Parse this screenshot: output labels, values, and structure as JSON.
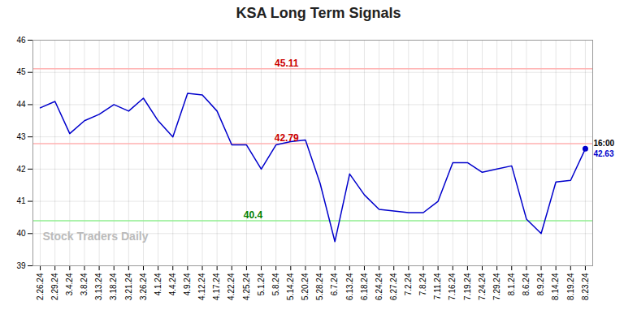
{
  "chart_data": {
    "type": "line",
    "title": "KSA Long Term Signals",
    "categories": [
      "2.26.24",
      "2.29.24",
      "3.4.24",
      "3.8.24",
      "3.13.24",
      "3.18.24",
      "3.21.24",
      "3.26.24",
      "4.1.24",
      "4.4.24",
      "4.9.24",
      "4.12.24",
      "4.17.24",
      "4.22.24",
      "4.25.24",
      "5.1.24",
      "5.8.24",
      "5.14.24",
      "5.20.24",
      "5.28.24",
      "6.7.24",
      "6.13.24",
      "6.18.24",
      "6.24.24",
      "6.27.24",
      "7.2.24",
      "7.8.24",
      "7.11.24",
      "7.16.24",
      "7.19.24",
      "7.24.24",
      "7.29.24",
      "8.1.24",
      "8.6.24",
      "8.9.24",
      "8.14.24",
      "8.19.24",
      "8.23.24"
    ],
    "values": [
      43.9,
      44.1,
      43.1,
      43.5,
      43.7,
      44.0,
      43.8,
      44.2,
      43.5,
      43.0,
      44.35,
      44.3,
      43.8,
      42.75,
      42.75,
      42.0,
      42.75,
      42.85,
      42.9,
      41.55,
      39.75,
      41.85,
      41.2,
      40.75,
      40.7,
      40.65,
      40.65,
      41.0,
      42.2,
      42.2,
      41.9,
      42.0,
      42.1,
      40.45,
      40.0,
      41.6,
      41.65,
      42.63
    ],
    "color": "#0000cc",
    "ylim": [
      39,
      46
    ],
    "yticks": [
      39,
      40,
      41,
      42,
      43,
      44,
      45,
      46
    ],
    "grid": true,
    "hlines": [
      {
        "value": 45.11,
        "label": "45.11",
        "color": "#ffb0b0",
        "label_color": "#cc0000"
      },
      {
        "value": 42.79,
        "label": "42.79",
        "color": "#ffb0b0",
        "label_color": "#cc0000"
      },
      {
        "value": 40.4,
        "label": "40.4",
        "color": "#90ee90",
        "label_color": "#008000"
      }
    ],
    "end_labels": [
      {
        "text": "16:00",
        "color": "black"
      },
      {
        "text": "42.63",
        "color": "#0000cc"
      }
    ],
    "watermark": {
      "text": "Stock Traders Daily",
      "color": "#bbbbbb"
    }
  }
}
